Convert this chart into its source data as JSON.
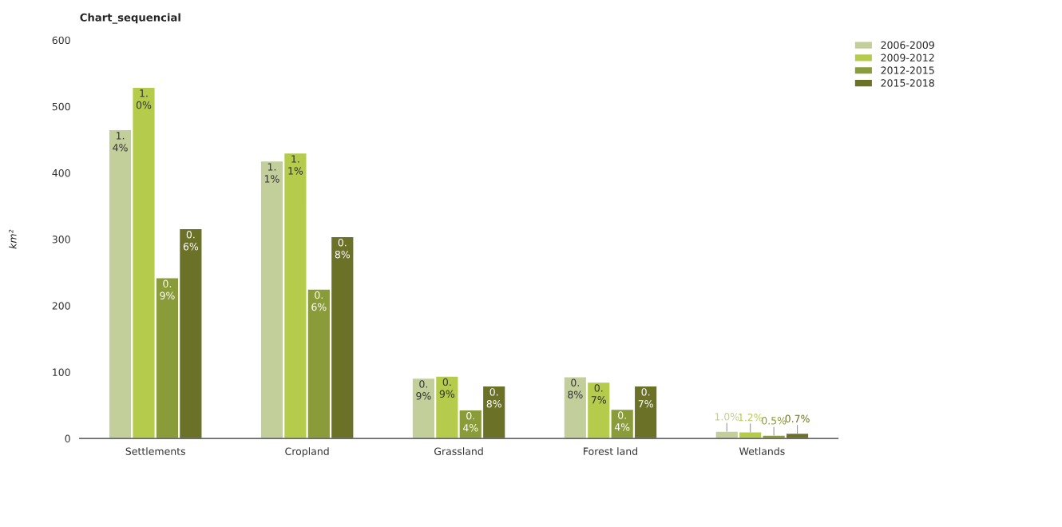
{
  "chart_data": {
    "type": "bar",
    "title": "Chart_sequencial",
    "ylabel": "km²",
    "categories": [
      "Settlements",
      "Cropland",
      "Grassland",
      "Forest land",
      "Wetlands"
    ],
    "series": [
      {
        "name": "2006-2009",
        "color": "#c3cf9a",
        "values": [
          465,
          418,
          91,
          93,
          11
        ]
      },
      {
        "name": "2009-2012",
        "color": "#b5cb4c",
        "values": [
          529,
          430,
          94,
          85,
          10
        ]
      },
      {
        "name": "2012-2015",
        "color": "#8a9b3a",
        "values": [
          242,
          225,
          43,
          44,
          5
        ]
      },
      {
        "name": "2015-2018",
        "color": "#6b7228",
        "values": [
          316,
          304,
          79,
          79,
          8
        ]
      }
    ],
    "annotations": [
      "1.4%",
      "1.1%",
      "0.9%",
      "0.8%",
      "1.0%",
      "1.0%",
      "1.1%",
      "0.9%",
      "0.7%",
      "1.2%",
      "0.9%",
      "0.6%",
      "0.4%",
      "0.4%",
      "0.5%",
      "0.6%",
      "0.8%",
      "0.8%",
      "0.7%",
      "0.7%"
    ],
    "ylim": [
      0,
      600
    ],
    "yticks": [
      0,
      100,
      200,
      300,
      400,
      500,
      600
    ],
    "grid": false,
    "legend": "top right"
  }
}
